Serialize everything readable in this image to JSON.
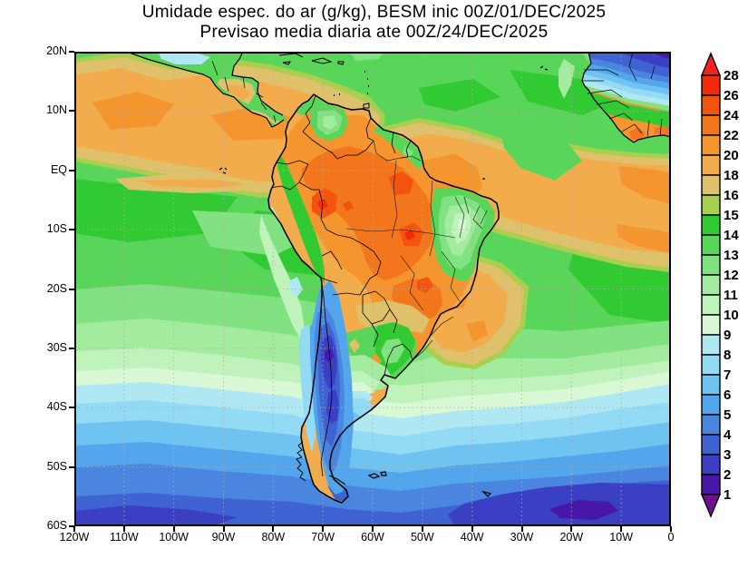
{
  "title": {
    "line1": "Umidade espec. do ar (g/kg), BESM inic 00Z/01/DEC/2025",
    "line2": "Previsao media diaria ate 00Z/24/DEC/2025"
  },
  "axes": {
    "lat_labels": [
      "20N",
      "10N",
      "EQ",
      "10S",
      "20S",
      "30S",
      "40S",
      "50S",
      "60S"
    ],
    "lon_labels": [
      "120W",
      "110W",
      "100W",
      "90W",
      "80W",
      "70W",
      "60W",
      "50W",
      "40W",
      "30W",
      "20W",
      "10W",
      "0"
    ]
  },
  "colorbar": {
    "labels": [
      "28",
      "26",
      "24",
      "22",
      "20",
      "18",
      "16",
      "15",
      "14",
      "13",
      "12",
      "11",
      "10",
      "9",
      "8",
      "7",
      "6",
      "5",
      "4",
      "3",
      "2",
      "1"
    ],
    "box_keys": [
      "lv26",
      "lv24",
      "lv22",
      "lv20",
      "lv18",
      "lv16",
      "lv15",
      "lv14",
      "lv13",
      "lv12",
      "lv11",
      "lv10",
      "lv9",
      "lv8",
      "lv7",
      "lv6",
      "lv5",
      "lv4",
      "lv3",
      "lv2",
      "lv1"
    ],
    "above_key": "lv28",
    "below_key": "lv1m"
  },
  "palette": {
    "lv1m": "#70108F",
    "lv1": "#4617A8",
    "lv2": "#3A3FC4",
    "lv3": "#3F63D2",
    "lv4": "#4A86E0",
    "lv5": "#53A6EC",
    "lv6": "#6FC3F1",
    "lv7": "#93DBF4",
    "lv8": "#AFE8F2",
    "lv9": "#D9F8D6",
    "lv10": "#C0F2BC",
    "lv11": "#A3EB9E",
    "lv12": "#81E281",
    "lv13": "#59D659",
    "lv14": "#32CA32",
    "lv15": "#A9CF4E",
    "lv16": "#DFC06B",
    "lv18": "#F2AC4C",
    "lv20": "#F5952D",
    "lv22": "#F4761C",
    "lv24": "#F2530E",
    "lv26": "#F22B0B",
    "lv28": "#FB2020"
  },
  "chart_data": {
    "type": "heatmap",
    "subtype": "filled_contour_map",
    "title": "Umidade espec. do ar (g/kg), BESM inic 00Z/01/DEC/2025",
    "subtitle": "Previsao media diaria ate 00Z/24/DEC/2025",
    "variable": "Umidade especifica do ar",
    "units": "g/kg",
    "model": "BESM",
    "init_time": "00Z/01/DEC/2025",
    "valid_period": "media diaria ate 00Z/24/DEC/2025",
    "lon_range": [
      "120W",
      "0"
    ],
    "lat_range": [
      "60S",
      "20N"
    ],
    "grid_dotted": true,
    "legend_position": "right",
    "contour_levels": [
      1,
      2,
      3,
      4,
      5,
      6,
      7,
      8,
      9,
      10,
      11,
      12,
      13,
      14,
      15,
      16,
      18,
      20,
      22,
      24,
      26,
      28
    ],
    "palette_hex_low_to_high": [
      "#70108F",
      "#4617A8",
      "#3A3FC4",
      "#3F63D2",
      "#4A86E0",
      "#53A6EC",
      "#6FC3F1",
      "#93DBF4",
      "#AFE8F2",
      "#D9F8D6",
      "#C0F2BC",
      "#A3EB9E",
      "#81E281",
      "#59D659",
      "#32CA32",
      "#A9CF4E",
      "#DFC06B",
      "#F2AC4C",
      "#F5952D",
      "#F4761C",
      "#F2530E",
      "#F22B0B",
      "#FB2020"
    ],
    "features": [
      "Faixa umida (16-22 g/kg) da ZCIT sobre o Pacifico leste entre 0-12N",
      "Faixa umida (16-22 g/kg) sobre o Atlantico tropical entre ~2N-12S ate a costa da Africa",
      "Maximos de 22-26 g/kg sobre o oeste/centro da Amazonia e sudeste do Brasil",
      "Minimo relativo (9-12 g/kg) sobre o Nordeste do Brasil",
      "Faixa muito seca (1-4 g/kg) ao longo dos Andes, Chile e Patagonia",
      "Ar muito seco (<4 g/kg) sobre o Saara / Africa Ocidental no canto nordeste do mapa",
      "Gradiente meridional no oceano: ~14 g/kg nos subtropicos caindo para 2-3 g/kg perto de 60S",
      "Umidade de 13-15 g/kg sobre o Uruguai e sul do Brasil, 8-10 g/kg nos Pampas"
    ]
  }
}
